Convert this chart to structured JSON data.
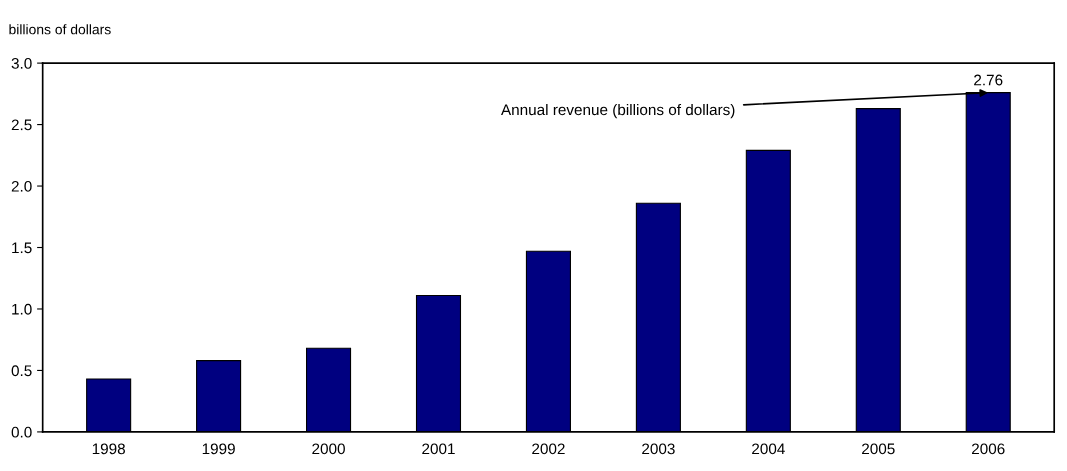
{
  "chart_data": {
    "type": "bar",
    "ylabel": "billions of dollars",
    "categories": [
      "1998",
      "1999",
      "2000",
      "2001",
      "2002",
      "2003",
      "2004",
      "2005",
      "2006"
    ],
    "values": [
      0.43,
      0.58,
      0.68,
      1.11,
      1.47,
      1.86,
      2.29,
      2.63,
      2.76
    ],
    "value_labels": [
      null,
      null,
      null,
      null,
      null,
      null,
      null,
      null,
      "2.76"
    ],
    "color": "#000080",
    "ylim": [
      0,
      3.0
    ],
    "yticks": [
      {
        "value": 0,
        "label": "0.0"
      },
      {
        "value": 0.5,
        "label": "0.5"
      },
      {
        "value": 1.0,
        "label": "1.0"
      },
      {
        "value": 1.5,
        "label": "1.5"
      },
      {
        "value": 2.0,
        "label": "2.0"
      },
      {
        "value": 2.5,
        "label": "2.5"
      },
      {
        "value": 3.0,
        "label": "3.0"
      }
    ],
    "grid": false,
    "annotations": [
      {
        "text": "Annual revenue (billions of dollars)",
        "x": "2006",
        "y": 2.76
      }
    ]
  }
}
